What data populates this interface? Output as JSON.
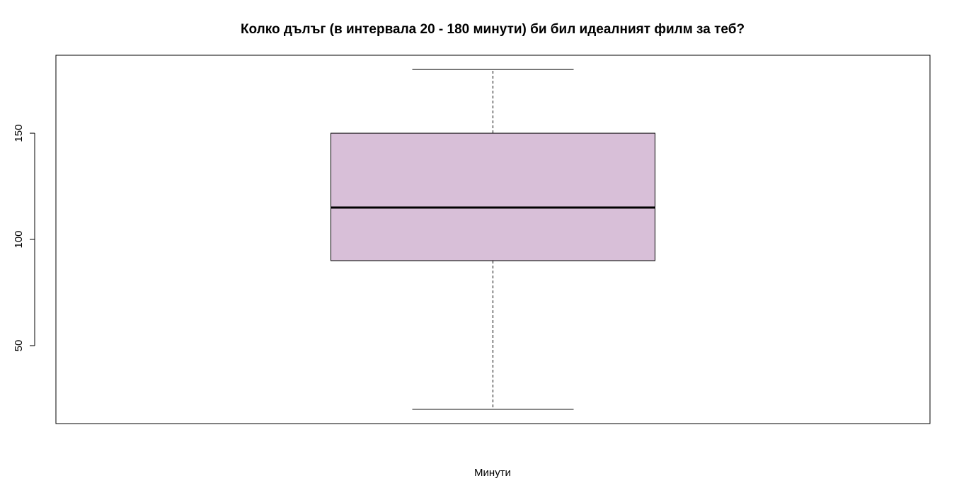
{
  "chart_data": {
    "type": "box",
    "title": "Колко дълъг (в интервала 20 - 180 минути) би бил идеалният филм за теб?",
    "xlabel": "Минути",
    "ylabel": "",
    "ylim": [
      13.3,
      186.7
    ],
    "yticks": [
      50,
      100,
      150
    ],
    "grid": false,
    "box": {
      "min": 20,
      "q1": 90,
      "median": 115,
      "q3": 150,
      "max": 180,
      "fill": "#d8bfd8"
    }
  }
}
